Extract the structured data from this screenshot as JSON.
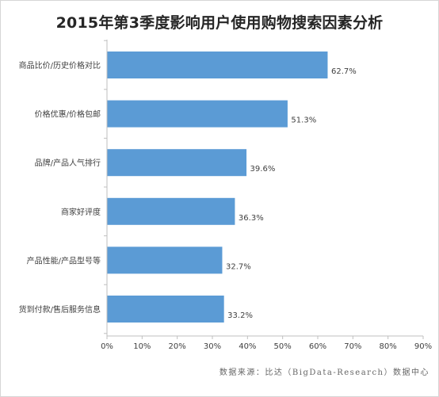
{
  "title": "2015年第3季度影响用户使用购物搜索因素分析",
  "source": "数据来源：比达（BigData-Research）数据中心",
  "colors": {
    "bar": "#5b9bd5",
    "axis": "#bfbfbf",
    "text": "#262626"
  },
  "chart_data": {
    "type": "bar",
    "orientation": "horizontal",
    "title": "2015年第3季度影响用户使用购物搜索因素分析",
    "categories": [
      "商品比价/历史价格对比",
      "价格优惠/价格包邮",
      "品牌/产品人气排行",
      "商家好评度",
      "产品性能/产品型号等",
      "货到付款/售后服务信息"
    ],
    "values": [
      62.7,
      51.3,
      39.6,
      36.3,
      32.7,
      33.2
    ],
    "value_labels": [
      "62.7%",
      "51.3%",
      "39.6%",
      "36.3%",
      "32.7%",
      "33.2%"
    ],
    "xlim": [
      0,
      90
    ],
    "xticks": [
      "0%",
      "10%",
      "20%",
      "30%",
      "40%",
      "50%",
      "60%",
      "70%",
      "80%",
      "90%"
    ],
    "grid": false,
    "legend": "none"
  }
}
